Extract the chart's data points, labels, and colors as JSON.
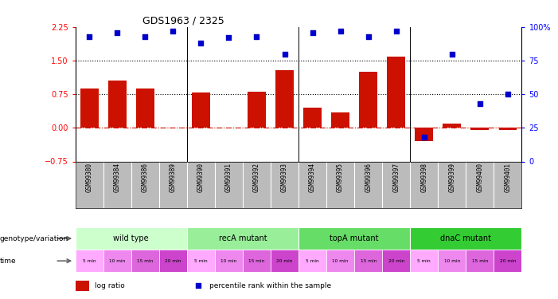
{
  "title": "GDS1963 / 2325",
  "samples": [
    "GSM99380",
    "GSM99384",
    "GSM99386",
    "GSM99389",
    "GSM99390",
    "GSM99391",
    "GSM99392",
    "GSM99393",
    "GSM99394",
    "GSM99395",
    "GSM99396",
    "GSM99397",
    "GSM99398",
    "GSM99399",
    "GSM99400",
    "GSM99401"
  ],
  "log_ratio": [
    0.88,
    1.05,
    0.88,
    0.0,
    0.78,
    0.0,
    0.8,
    1.28,
    0.45,
    0.35,
    1.25,
    1.58,
    -0.3,
    0.1,
    -0.05,
    -0.05
  ],
  "percentile_rank": [
    93,
    96,
    93,
    97,
    88,
    92,
    93,
    80,
    96,
    97,
    93,
    97,
    18,
    80,
    43,
    50
  ],
  "bar_color": "#cc1100",
  "dot_color": "#0000cc",
  "ylim_left": [
    -0.75,
    2.25
  ],
  "ylim_right": [
    0,
    100
  ],
  "yticks_left": [
    -0.75,
    0,
    0.75,
    1.5,
    2.25
  ],
  "yticks_right": [
    0,
    25,
    50,
    75,
    100
  ],
  "hlines": [
    0.75,
    1.5
  ],
  "groups": [
    {
      "label": "wild type",
      "start": 0,
      "end": 4,
      "color": "#ccffcc"
    },
    {
      "label": "recA mutant",
      "start": 4,
      "end": 8,
      "color": "#99ee99"
    },
    {
      "label": "topA mutant",
      "start": 8,
      "end": 12,
      "color": "#66dd66"
    },
    {
      "label": "dnaC mutant",
      "start": 12,
      "end": 16,
      "color": "#33cc33"
    }
  ],
  "time_labels": [
    "5 min",
    "10 min",
    "15 min",
    "20 min",
    "5 min",
    "10 min",
    "15 min",
    "20 min",
    "5 min",
    "10 min",
    "15 min",
    "20 min",
    "5 min",
    "10 min",
    "15 min",
    "20 min"
  ],
  "time_colors": [
    "#ffaaff",
    "#ee88ee",
    "#dd66dd",
    "#cc44cc",
    "#ffaaff",
    "#ee88ee",
    "#dd66dd",
    "#cc44cc",
    "#ffaaff",
    "#ee88ee",
    "#dd66dd",
    "#cc44cc",
    "#ffaaff",
    "#ee88ee",
    "#dd66dd",
    "#cc44cc"
  ],
  "label_bg": "#bbbbbb",
  "background_color": "#ffffff"
}
